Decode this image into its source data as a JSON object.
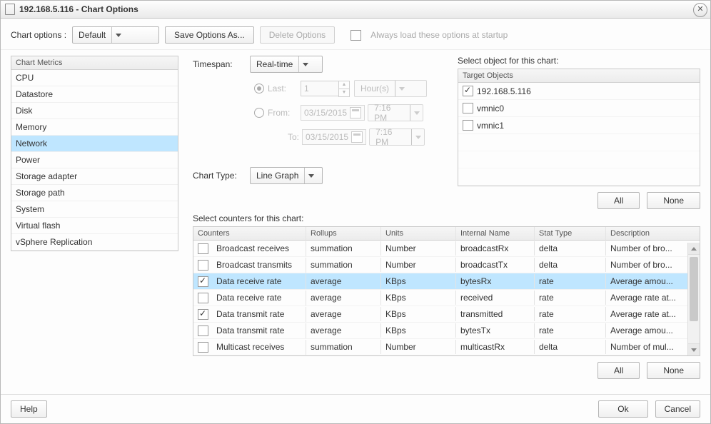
{
  "window": {
    "title": "192.168.5.116 - Chart Options"
  },
  "toolbar": {
    "chart_options_label": "Chart options :",
    "chart_options_value": "Default",
    "save_as": "Save Options As...",
    "delete": "Delete Options",
    "startup": "Always load these options at startup"
  },
  "metrics": {
    "header": "Chart Metrics",
    "items": [
      "CPU",
      "Datastore",
      "Disk",
      "Memory",
      "Network",
      "Power",
      "Storage adapter",
      "Storage path",
      "System",
      "Virtual flash",
      "vSphere Replication"
    ],
    "selected_index": 4
  },
  "timespan": {
    "label": "Timespan:",
    "value": "Real-time",
    "last_label": "Last:",
    "last_value": "1",
    "last_unit": "Hour(s)",
    "from_label": "From:",
    "to_label": "To:",
    "date": "03/15/2015",
    "time": "7:16 PM"
  },
  "chart_type": {
    "label": "Chart Type:",
    "value": "Line Graph"
  },
  "target": {
    "select_label": "Select object for this chart:",
    "header": "Target Objects",
    "rows": [
      {
        "label": "192.168.5.116",
        "checked": true
      },
      {
        "label": "vmnic0",
        "checked": false
      },
      {
        "label": "vmnic1",
        "checked": false
      }
    ],
    "all": "All",
    "none": "None"
  },
  "counters": {
    "label": "Select counters for this chart:",
    "columns": [
      "Counters",
      "Rollups",
      "Units",
      "Internal Name",
      "Stat Type",
      "Description"
    ],
    "rows": [
      {
        "checked": false,
        "counter": "Broadcast receives",
        "rollup": "summation",
        "units": "Number",
        "internal": "broadcastRx",
        "stat": "delta",
        "desc": "Number of bro...",
        "sel": false
      },
      {
        "checked": false,
        "counter": "Broadcast transmits",
        "rollup": "summation",
        "units": "Number",
        "internal": "broadcastTx",
        "stat": "delta",
        "desc": "Number of bro...",
        "sel": false
      },
      {
        "checked": true,
        "counter": "Data receive rate",
        "rollup": "average",
        "units": "KBps",
        "internal": "bytesRx",
        "stat": "rate",
        "desc": "Average amou...",
        "sel": true
      },
      {
        "checked": false,
        "counter": "Data receive rate",
        "rollup": "average",
        "units": "KBps",
        "internal": "received",
        "stat": "rate",
        "desc": "Average rate at...",
        "sel": false
      },
      {
        "checked": true,
        "counter": "Data transmit rate",
        "rollup": "average",
        "units": "KBps",
        "internal": "transmitted",
        "stat": "rate",
        "desc": "Average rate at...",
        "sel": false
      },
      {
        "checked": false,
        "counter": "Data transmit rate",
        "rollup": "average",
        "units": "KBps",
        "internal": "bytesTx",
        "stat": "rate",
        "desc": "Average amou...",
        "sel": false
      },
      {
        "checked": false,
        "counter": "Multicast receives",
        "rollup": "summation",
        "units": "Number",
        "internal": "multicastRx",
        "stat": "delta",
        "desc": "Number of mul...",
        "sel": false
      }
    ],
    "all": "All",
    "none": "None"
  },
  "footer": {
    "help": "Help",
    "ok": "Ok",
    "cancel": "Cancel"
  }
}
